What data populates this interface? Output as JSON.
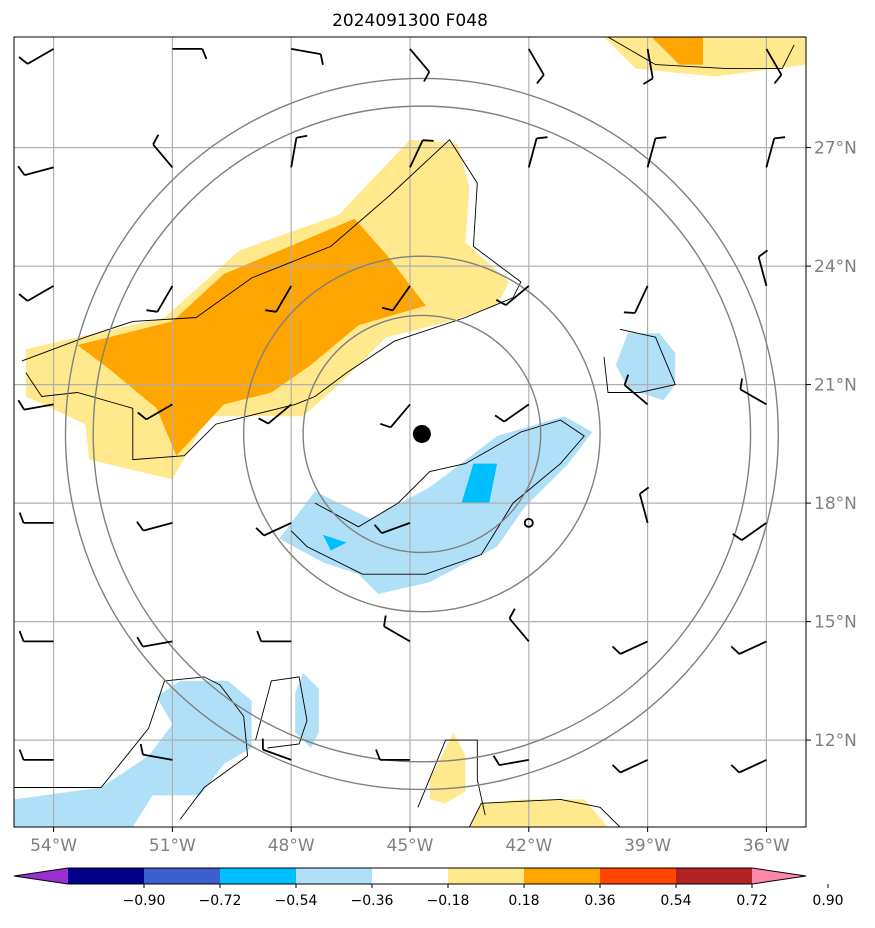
{
  "chart_data": {
    "type": "heatmap",
    "title": "2024091300 F048",
    "x_axis": {
      "range": [
        -55,
        -35
      ],
      "ticks": [
        -54,
        -51,
        -48,
        -45,
        -42,
        -39,
        -36
      ],
      "tick_labels": [
        "54°W",
        "51°W",
        "48°W",
        "45°W",
        "42°W",
        "39°W",
        "36°W"
      ]
    },
    "y_axis": {
      "range": [
        9.8,
        29.8
      ],
      "ticks": [
        12,
        15,
        18,
        21,
        24,
        27
      ],
      "tick_labels": [
        "12°N",
        "15°N",
        "18°N",
        "21°N",
        "24°N",
        "27°N"
      ]
    },
    "grid": true,
    "center_marker": {
      "lon": -44.7,
      "lat": 19.75
    },
    "range_rings_deg": [
      3,
      4.5,
      8.3,
      9
    ],
    "colorbar": {
      "levels": [
        -0.9,
        -0.72,
        -0.54,
        -0.36,
        -0.18,
        0.18,
        0.36,
        0.54,
        0.72,
        0.9
      ],
      "tick_labels": [
        "−0.90",
        "−0.72",
        "−0.54",
        "−0.36",
        "−0.18",
        "0.18",
        "0.36",
        "0.54",
        "0.72",
        "0.90"
      ],
      "colors": [
        "#9b30d0",
        "#00008b",
        "#3a5fcd",
        "#00bfff",
        "#b0e0f8",
        "#ffffff",
        "#ffe98c",
        "#ffa500",
        "#ff4500",
        "#b22222",
        "#ff88aa"
      ],
      "extend": "both"
    },
    "contour_regions": [
      {
        "name": "positive-band-north",
        "level": 0.18,
        "color": "#ffe98c",
        "points": [
          [
            -54.7,
            21.9
          ],
          [
            -51.2,
            22.7
          ],
          [
            -49.3,
            24.4
          ],
          [
            -46.8,
            25.3
          ],
          [
            -45.0,
            27.2
          ],
          [
            -43.8,
            27.1
          ],
          [
            -43.5,
            26.0
          ],
          [
            -43.6,
            24.6
          ],
          [
            -42.5,
            23.6
          ],
          [
            -42.8,
            23.0
          ],
          [
            -44.0,
            22.6
          ],
          [
            -45.6,
            22.2
          ],
          [
            -46.8,
            21.0
          ],
          [
            -47.7,
            20.2
          ],
          [
            -50.1,
            20.2
          ],
          [
            -51.0,
            18.6
          ],
          [
            -53.1,
            19.1
          ],
          [
            -53.2,
            20.0
          ],
          [
            -54.7,
            20.7
          ]
        ]
      },
      {
        "name": "strong-band-north",
        "level": 0.36,
        "color": "#ffa500",
        "points": [
          [
            -53.4,
            22.0
          ],
          [
            -51.0,
            22.6
          ],
          [
            -49.7,
            23.8
          ],
          [
            -47.8,
            24.6
          ],
          [
            -46.4,
            25.2
          ],
          [
            -45.6,
            24.3
          ],
          [
            -44.6,
            23.0
          ],
          [
            -46.3,
            22.5
          ],
          [
            -47.5,
            21.5
          ],
          [
            -48.5,
            20.8
          ],
          [
            -49.7,
            20.5
          ],
          [
            -50.9,
            19.2
          ],
          [
            -51.4,
            20.4
          ],
          [
            -52.6,
            21.4
          ]
        ]
      },
      {
        "name": "positive-patch-northeast",
        "level": 0.18,
        "color": "#ffe98c",
        "points": [
          [
            -40.1,
            29.8
          ],
          [
            -35.0,
            29.8
          ],
          [
            -35.0,
            29.1
          ],
          [
            -37.3,
            28.8
          ],
          [
            -39.3,
            29.0
          ]
        ]
      },
      {
        "name": "strong-patch-northeast",
        "level": 0.36,
        "color": "#ffa500",
        "points": [
          [
            -38.9,
            29.8
          ],
          [
            -37.6,
            29.8
          ],
          [
            -37.6,
            29.1
          ],
          [
            -38.2,
            29.1
          ]
        ]
      },
      {
        "name": "positive-patch-south",
        "level": 0.18,
        "color": "#ffe98c",
        "points": [
          [
            -44.5,
            11.0
          ],
          [
            -43.9,
            12.2
          ],
          [
            -43.6,
            11.6
          ],
          [
            -43.6,
            10.7
          ],
          [
            -44.1,
            10.4
          ],
          [
            -44.5,
            10.5
          ]
        ]
      },
      {
        "name": "positive-patch-southeast",
        "level": 0.18,
        "color": "#ffe98c",
        "points": [
          [
            -43.5,
            9.8
          ],
          [
            -43.2,
            10.4
          ],
          [
            -42.1,
            10.5
          ],
          [
            -40.6,
            10.5
          ],
          [
            -40.0,
            9.8
          ]
        ]
      },
      {
        "name": "negative-band-central",
        "level": -0.18,
        "color": "#b0e0f8",
        "points": [
          [
            -48.3,
            17.1
          ],
          [
            -47.4,
            18.3
          ],
          [
            -46.0,
            17.6
          ],
          [
            -44.5,
            18.4
          ],
          [
            -42.8,
            19.7
          ],
          [
            -41.1,
            20.2
          ],
          [
            -40.4,
            19.8
          ],
          [
            -41.0,
            19.0
          ],
          [
            -42.1,
            17.9
          ],
          [
            -42.8,
            16.9
          ],
          [
            -44.5,
            16.0
          ],
          [
            -45.8,
            15.7
          ],
          [
            -46.3,
            16.2
          ],
          [
            -47.2,
            16.5
          ]
        ]
      },
      {
        "name": "moderate-patch-central",
        "level": -0.36,
        "color": "#00bfff",
        "points": [
          [
            -43.4,
            19.0
          ],
          [
            -42.8,
            19.0
          ],
          [
            -43.0,
            18.0
          ],
          [
            -43.7,
            18.0
          ]
        ]
      },
      {
        "name": "moderate-patch-west",
        "level": -0.36,
        "color": "#00bfff",
        "points": [
          [
            -47.2,
            17.2
          ],
          [
            -46.6,
            17.0
          ],
          [
            -47.0,
            16.8
          ]
        ]
      },
      {
        "name": "negative-patch-east",
        "level": -0.18,
        "color": "#b0e0f8",
        "points": [
          [
            -39.5,
            22.3
          ],
          [
            -38.7,
            22.3
          ],
          [
            -38.3,
            21.8
          ],
          [
            -38.3,
            21.0
          ],
          [
            -38.6,
            20.6
          ],
          [
            -39.5,
            20.9
          ],
          [
            -39.8,
            21.5
          ]
        ]
      },
      {
        "name": "negative-patch-southwest",
        "level": -0.18,
        "color": "#b0e0f8",
        "points": [
          [
            -55.0,
            10.5
          ],
          [
            -52.8,
            10.8
          ],
          [
            -51.6,
            11.6
          ],
          [
            -51.0,
            12.4
          ],
          [
            -51.4,
            13.1
          ],
          [
            -50.8,
            13.5
          ],
          [
            -49.6,
            13.5
          ],
          [
            -49.0,
            13.0
          ],
          [
            -49.0,
            11.8
          ],
          [
            -49.7,
            11.4
          ],
          [
            -50.3,
            10.6
          ],
          [
            -51.5,
            10.6
          ],
          [
            -52.0,
            9.8
          ],
          [
            -55.0,
            9.8
          ]
        ]
      },
      {
        "name": "negative-patch-south-small",
        "level": -0.18,
        "color": "#b0e0f8",
        "points": [
          [
            -47.7,
            13.7
          ],
          [
            -47.3,
            13.3
          ],
          [
            -47.3,
            12.2
          ],
          [
            -47.5,
            11.8
          ],
          [
            -47.9,
            12.2
          ],
          [
            -47.9,
            13.2
          ]
        ]
      }
    ],
    "contour_lines": [
      {
        "name": "outline-north",
        "points": [
          [
            -54.8,
            21.6
          ],
          [
            -53.2,
            22.2
          ],
          [
            -52.0,
            22.6
          ],
          [
            -50.4,
            22.7
          ],
          [
            -49.0,
            23.7
          ],
          [
            -47.0,
            24.5
          ],
          [
            -45.5,
            25.8
          ],
          [
            -44.0,
            27.2
          ],
          [
            -43.3,
            26.1
          ],
          [
            -43.4,
            24.5
          ],
          [
            -42.2,
            23.6
          ],
          [
            -42.4,
            23.2
          ],
          [
            -43.6,
            22.7
          ],
          [
            -45.4,
            22.1
          ],
          [
            -46.6,
            21.3
          ],
          [
            -47.4,
            20.7
          ],
          [
            -47.9,
            20.5
          ],
          [
            -49.9,
            20.0
          ],
          [
            -50.7,
            19.2
          ],
          [
            -52.0,
            19.1
          ],
          [
            -52.0,
            20.4
          ],
          [
            -53.4,
            20.8
          ],
          [
            -54.3,
            20.7
          ],
          [
            -54.7,
            21.3
          ]
        ]
      },
      {
        "name": "outline-central",
        "points": [
          [
            -47.4,
            18.0
          ],
          [
            -46.3,
            17.4
          ],
          [
            -45.3,
            18.0
          ],
          [
            -44.5,
            18.8
          ],
          [
            -43.6,
            19.0
          ],
          [
            -42.2,
            19.8
          ],
          [
            -41.2,
            20.1
          ],
          [
            -40.6,
            19.7
          ],
          [
            -41.2,
            19.0
          ],
          [
            -42.4,
            18.0
          ],
          [
            -43.2,
            16.7
          ],
          [
            -44.6,
            16.2
          ],
          [
            -46.2,
            16.2
          ],
          [
            -47.6,
            16.9
          ],
          [
            -48.0,
            17.3
          ]
        ]
      },
      {
        "name": "outline-east",
        "points": [
          [
            -39.7,
            22.4
          ],
          [
            -38.8,
            22.2
          ],
          [
            -38.3,
            21.0
          ],
          [
            -39.2,
            20.8
          ],
          [
            -40.0,
            20.8
          ],
          [
            -40.1,
            21.7
          ]
        ]
      },
      {
        "name": "outline-northeast",
        "points": [
          [
            -40.0,
            29.8
          ],
          [
            -38.8,
            29.1
          ],
          [
            -37.0,
            29.0
          ],
          [
            -35.6,
            29.0
          ],
          [
            -35.3,
            29.6
          ]
        ]
      },
      {
        "name": "outline-southwest",
        "points": [
          [
            -55.0,
            10.8
          ],
          [
            -52.8,
            10.8
          ],
          [
            -51.6,
            12.3
          ],
          [
            -51.2,
            13.5
          ],
          [
            -50.2,
            13.6
          ],
          [
            -49.8,
            13.4
          ],
          [
            -49.2,
            12.6
          ],
          [
            -49.1,
            11.6
          ],
          [
            -50.2,
            10.8
          ],
          [
            -50.8,
            10.0
          ]
        ]
      },
      {
        "name": "outline-south-small",
        "points": [
          [
            -48.9,
            12.0
          ],
          [
            -48.5,
            13.5
          ],
          [
            -47.8,
            13.6
          ],
          [
            -47.6,
            12.5
          ],
          [
            -47.8,
            11.9
          ],
          [
            -48.6,
            11.8
          ]
        ]
      },
      {
        "name": "outline-south",
        "points": [
          [
            -44.8,
            10.3
          ],
          [
            -44.1,
            12.0
          ],
          [
            -43.3,
            12.0
          ],
          [
            -43.3,
            11.0
          ],
          [
            -43.1,
            10.1
          ]
        ]
      },
      {
        "name": "outline-southeast",
        "points": [
          [
            -43.5,
            9.8
          ],
          [
            -43.2,
            10.4
          ],
          [
            -41.2,
            10.5
          ],
          [
            -40.2,
            10.3
          ],
          [
            -39.7,
            9.8
          ]
        ]
      }
    ],
    "wind_barbs": [
      {
        "lon": -54.0,
        "lat": 29.5,
        "dir": 240,
        "barbs": 1
      },
      {
        "lon": -51.0,
        "lat": 29.5,
        "dir": 90,
        "barbs": 1
      },
      {
        "lon": -48.0,
        "lat": 29.5,
        "dir": 100,
        "barbs": 1
      },
      {
        "lon": -45.0,
        "lat": 29.5,
        "dir": 140,
        "barbs": 1
      },
      {
        "lon": -42.0,
        "lat": 29.5,
        "dir": 150,
        "barbs": 1
      },
      {
        "lon": -39.0,
        "lat": 29.5,
        "dir": 170,
        "barbs": 1
      },
      {
        "lon": -36.0,
        "lat": 29.5,
        "dir": 150,
        "barbs": 1
      },
      {
        "lon": -54.0,
        "lat": 26.5,
        "dir": 255,
        "barbs": 1
      },
      {
        "lon": -51.0,
        "lat": 26.5,
        "dir": 320,
        "barbs": 1
      },
      {
        "lon": -48.0,
        "lat": 26.5,
        "dir": 10,
        "barbs": 1
      },
      {
        "lon": -45.0,
        "lat": 26.5,
        "dir": 25,
        "barbs": 1
      },
      {
        "lon": -42.0,
        "lat": 26.5,
        "dir": 15,
        "barbs": 1
      },
      {
        "lon": -39.0,
        "lat": 26.5,
        "dir": 15,
        "barbs": 1
      },
      {
        "lon": -36.0,
        "lat": 26.5,
        "dir": 15,
        "barbs": 1
      },
      {
        "lon": -54.0,
        "lat": 23.5,
        "dir": 240,
        "barbs": 1
      },
      {
        "lon": -51.0,
        "lat": 23.5,
        "dir": 210,
        "barbs": 1
      },
      {
        "lon": -48.0,
        "lat": 23.5,
        "dir": 210,
        "barbs": 1
      },
      {
        "lon": -45.0,
        "lat": 23.5,
        "dir": 215,
        "barbs": 1
      },
      {
        "lon": -42.0,
        "lat": 23.5,
        "dir": 230,
        "barbs": 1
      },
      {
        "lon": -39.0,
        "lat": 23.5,
        "dir": 205,
        "barbs": 1
      },
      {
        "lon": -36.0,
        "lat": 23.5,
        "dir": 345,
        "barbs": 1
      },
      {
        "lon": -54.0,
        "lat": 20.5,
        "dir": 260,
        "barbs": 1
      },
      {
        "lon": -51.0,
        "lat": 20.5,
        "dir": 240,
        "barbs": 1
      },
      {
        "lon": -48.0,
        "lat": 20.5,
        "dir": 230,
        "barbs": 1
      },
      {
        "lon": -45.0,
        "lat": 20.5,
        "dir": 220,
        "barbs": 1
      },
      {
        "lon": -42.0,
        "lat": 20.5,
        "dir": 235,
        "barbs": 1
      },
      {
        "lon": -39.0,
        "lat": 20.5,
        "dir": 310,
        "barbs": 1
      },
      {
        "lon": -36.0,
        "lat": 20.5,
        "dir": 300,
        "barbs": 1
      },
      {
        "lon": -54.0,
        "lat": 17.5,
        "dir": 270,
        "barbs": 1
      },
      {
        "lon": -51.0,
        "lat": 17.5,
        "dir": 255,
        "barbs": 1
      },
      {
        "lon": -48.0,
        "lat": 17.5,
        "dir": 245,
        "barbs": 1
      },
      {
        "lon": -45.0,
        "lat": 17.5,
        "dir": 250,
        "barbs": 1
      },
      {
        "lon": -42.0,
        "lat": 17.5,
        "dir": 0,
        "barbs": 0,
        "calm": true
      },
      {
        "lon": -39.0,
        "lat": 17.5,
        "dir": 345,
        "barbs": 1
      },
      {
        "lon": -36.0,
        "lat": 17.5,
        "dir": 235,
        "barbs": 1
      },
      {
        "lon": -54.0,
        "lat": 14.5,
        "dir": 270,
        "barbs": 1
      },
      {
        "lon": -51.0,
        "lat": 14.5,
        "dir": 260,
        "barbs": 1
      },
      {
        "lon": -48.0,
        "lat": 14.5,
        "dir": 270,
        "barbs": 1
      },
      {
        "lon": -45.0,
        "lat": 14.5,
        "dir": 300,
        "barbs": 1
      },
      {
        "lon": -42.0,
        "lat": 14.5,
        "dir": 320,
        "barbs": 1
      },
      {
        "lon": -39.0,
        "lat": 14.5,
        "dir": 245,
        "barbs": 1
      },
      {
        "lon": -36.0,
        "lat": 14.5,
        "dir": 245,
        "barbs": 1
      },
      {
        "lon": -54.0,
        "lat": 11.5,
        "dir": 270,
        "barbs": 1
      },
      {
        "lon": -51.0,
        "lat": 11.5,
        "dir": 280,
        "barbs": 1
      },
      {
        "lon": -48.0,
        "lat": 11.5,
        "dir": 290,
        "barbs": 1
      },
      {
        "lon": -45.0,
        "lat": 11.5,
        "dir": 270,
        "barbs": 1
      },
      {
        "lon": -42.0,
        "lat": 11.5,
        "dir": 260,
        "barbs": 1
      },
      {
        "lon": -39.0,
        "lat": 11.5,
        "dir": 245,
        "barbs": 1
      },
      {
        "lon": -36.0,
        "lat": 11.5,
        "dir": 245,
        "barbs": 1
      }
    ]
  }
}
